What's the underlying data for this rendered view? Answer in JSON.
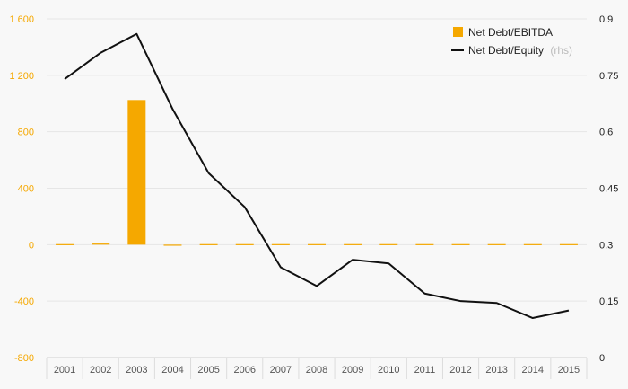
{
  "colors": {
    "bar": "#f5a800",
    "line": "#111111",
    "grid": "#e6e6e6",
    "left_tick": "#f5a800",
    "right_tick": "#222222",
    "background": "#f8f8f8"
  },
  "legend": {
    "bar_label": "Net Debt/EBITDA",
    "line_label": "Net Debt/Equity",
    "line_suffix": "(rhs)"
  },
  "chart_data": {
    "type": "bar",
    "title": "",
    "categories": [
      "2001",
      "2002",
      "2003",
      "2004",
      "2005",
      "2006",
      "2007",
      "2008",
      "2009",
      "2010",
      "2011",
      "2012",
      "2013",
      "2014",
      "2015"
    ],
    "series": [
      {
        "name": "Net Debt/EBITDA",
        "type": "bar",
        "axis": "left",
        "values": [
          3,
          8,
          1025,
          -5,
          2,
          2,
          0,
          2,
          0,
          2,
          0,
          0,
          2,
          0,
          0
        ]
      },
      {
        "name": "Net Debt/Equity",
        "type": "line",
        "axis": "right",
        "values": [
          0.74,
          0.81,
          0.86,
          0.66,
          0.49,
          0.4,
          0.24,
          0.19,
          0.26,
          0.25,
          0.17,
          0.15,
          0.145,
          0.105,
          0.125
        ]
      }
    ],
    "y_left": {
      "lim": [
        -800,
        1600
      ],
      "ticks": [
        -800,
        -400,
        0,
        400,
        800,
        1200,
        1600
      ],
      "tick_labels": [
        "-800",
        "-400",
        "0",
        "400",
        "800",
        "1 200",
        "1 600"
      ]
    },
    "y_right": {
      "lim": [
        0,
        0.9
      ],
      "ticks": [
        0,
        0.15,
        0.3,
        0.45,
        0.6,
        0.75,
        0.9
      ],
      "tick_labels": [
        "0",
        "0.15",
        "0.3",
        "0.45",
        "0.6",
        "0.75",
        "0.9"
      ]
    },
    "grid": true,
    "legend_position": "top-right"
  }
}
